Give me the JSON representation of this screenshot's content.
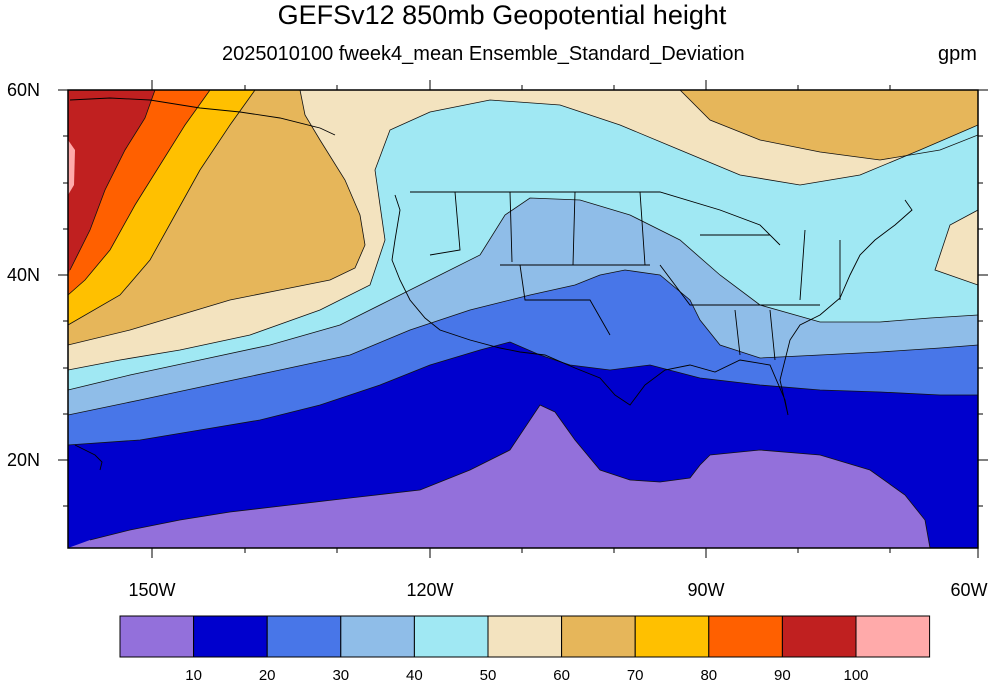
{
  "title": "GEFSv12 850mb Geopotential height",
  "subtitle": "2025010100 fweek4_mean Ensemble_Standard_Deviation",
  "units": "gpm",
  "lat_labels": [
    "60N",
    "40N",
    "20N"
  ],
  "lon_labels": [
    "150W",
    "120W",
    "90W",
    "60W"
  ],
  "colorbar": {
    "labels": [
      "10",
      "20",
      "30",
      "40",
      "50",
      "60",
      "70",
      "80",
      "90",
      "100"
    ],
    "colors": [
      "#9370db",
      "#0000cd",
      "#4876e8",
      "#8fbde8",
      "#a0e8f3",
      "#f3e3bf",
      "#e6b65a",
      "#ffc000",
      "#ff6000",
      "#c02020",
      "#ffaaaa"
    ]
  },
  "map": {
    "domain": "Map of North Pacific and continental United States, 10N-60N, 160W-60W",
    "fill_colors": {
      "c10": "#9370db",
      "c20": "#0000cd",
      "c30": "#4876e8",
      "c40": "#8fbde8",
      "c50": "#a0e8f3",
      "c60": "#f3e3bf",
      "c70": "#e6b65a",
      "c80": "#ffc000",
      "c90": "#ff6000",
      "c100": "#c02020",
      "c110": "#ffaaaa"
    }
  }
}
